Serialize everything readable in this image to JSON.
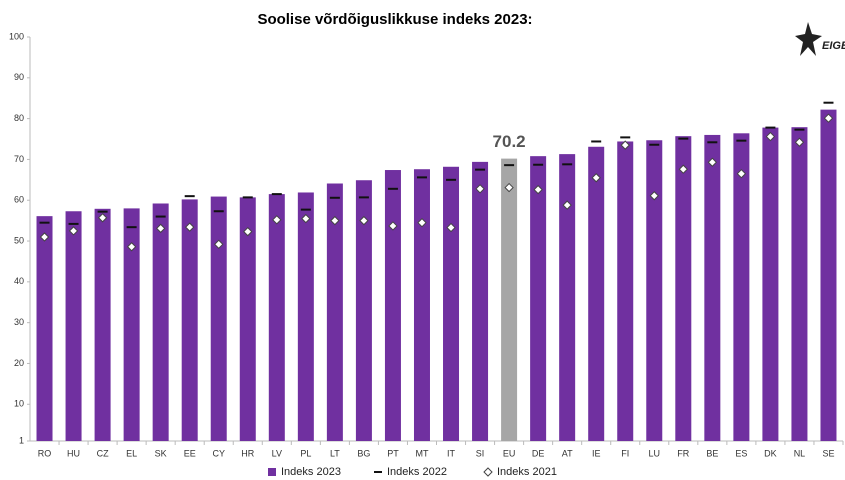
{
  "chart_data": {
    "type": "bar",
    "title": "Soolise võrdõiguslikkuse indeks 2023:",
    "logo": "EIGE",
    "categories": [
      "RO",
      "HU",
      "CZ",
      "EL",
      "SK",
      "EE",
      "CY",
      "HR",
      "LV",
      "PL",
      "LT",
      "BG",
      "PT",
      "MT",
      "IT",
      "SI",
      "EU",
      "DE",
      "AT",
      "IE",
      "FI",
      "LU",
      "FR",
      "BE",
      "ES",
      "DK",
      "NL",
      "SE"
    ],
    "series": [
      {
        "name": "Indeks 2023",
        "color": "#7030a0",
        "marker": "bar",
        "colors": [
          "#7030a0",
          "#7030a0",
          "#7030a0",
          "#7030a0",
          "#7030a0",
          "#7030a0",
          "#7030a0",
          "#7030a0",
          "#7030a0",
          "#7030a0",
          "#7030a0",
          "#7030a0",
          "#7030a0",
          "#7030a0",
          "#7030a0",
          "#7030a0",
          "#a6a6a6",
          "#7030a0",
          "#7030a0",
          "#7030a0",
          "#7030a0",
          "#7030a0",
          "#7030a0",
          "#7030a0",
          "#7030a0",
          "#7030a0",
          "#7030a0",
          "#7030a0"
        ],
        "values": [
          56.1,
          57.3,
          57.9,
          58.0,
          59.2,
          60.2,
          60.9,
          60.7,
          61.5,
          61.9,
          64.1,
          64.9,
          67.4,
          67.6,
          68.2,
          69.4,
          70.2,
          70.8,
          71.3,
          73.1,
          74.4,
          74.7,
          75.7,
          76.0,
          76.4,
          77.8,
          77.9,
          82.2
        ]
      },
      {
        "name": "Indeks 2022",
        "color": "#111111",
        "marker": "dash",
        "values": [
          54.5,
          54.2,
          57.2,
          53.4,
          56.0,
          61.0,
          57.3,
          60.7,
          61.5,
          57.7,
          60.6,
          60.7,
          62.8,
          65.6,
          65.0,
          67.5,
          68.6,
          68.7,
          68.8,
          74.4,
          75.4,
          73.6,
          75.1,
          74.2,
          74.6,
          77.8,
          77.3,
          83.9
        ]
      },
      {
        "name": "Indeks 2021",
        "color": "#ffffff",
        "marker": "diamond",
        "values": [
          51.0,
          52.5,
          55.7,
          48.6,
          53.1,
          53.4,
          49.2,
          52.3,
          55.2,
          55.5,
          55.0,
          55.0,
          53.7,
          54.5,
          53.3,
          62.8,
          63.1,
          62.6,
          58.8,
          65.5,
          73.5,
          61.1,
          67.6,
          69.3,
          66.5,
          75.6,
          74.2,
          80.1
        ]
      }
    ],
    "labeled_point": 16,
    "ylim": [
      1,
      100
    ],
    "yticks": [
      1,
      10,
      20,
      30,
      40,
      50,
      60,
      70,
      80,
      90,
      100
    ],
    "grid": false
  }
}
